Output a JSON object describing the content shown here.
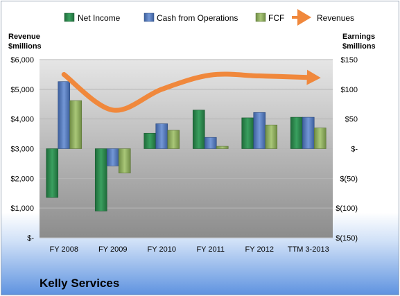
{
  "chart_data": {
    "type": "bar",
    "title": "Kelly Services",
    "categories": [
      "FY 2008",
      "FY 2009",
      "FY 2010",
      "FY 2011",
      "FY 2012",
      "TTM 3-2013"
    ],
    "left_axis": {
      "label_line1": "Revenue",
      "label_line2": "$millions",
      "ylim": [
        0,
        6000
      ],
      "ticks": [
        "$-",
        "$1,000",
        "$2,000",
        "$3,000",
        "$4,000",
        "$5,000",
        "$6,000"
      ]
    },
    "right_axis": {
      "label_line1": "Earnings",
      "label_line2": "$millions",
      "ylim": [
        -150,
        150
      ],
      "ticks": [
        "$(150)",
        "$(100)",
        "$(50)",
        "$-",
        "$50",
        "$100",
        "$150"
      ]
    },
    "series": [
      {
        "name": "Net Income",
        "type": "bar",
        "axis": "right",
        "color": "#2e8b4f",
        "values": [
          -82,
          -105,
          26,
          65,
          52,
          53
        ]
      },
      {
        "name": "Cash from Operations",
        "type": "bar",
        "axis": "right",
        "color": "#5b7fbf",
        "values": [
          113,
          -29,
          42,
          19,
          61,
          53
        ]
      },
      {
        "name": "FCF",
        "type": "bar",
        "axis": "right",
        "color": "#8fb05e",
        "values": [
          81,
          -41,
          31,
          4,
          40,
          35
        ]
      },
      {
        "name": "Revenues",
        "type": "line",
        "axis": "left",
        "color": "#f0883c",
        "values": [
          5500,
          4300,
          5000,
          5480,
          5450,
          5400
        ]
      }
    ],
    "legend_position": "top",
    "grid": true
  }
}
